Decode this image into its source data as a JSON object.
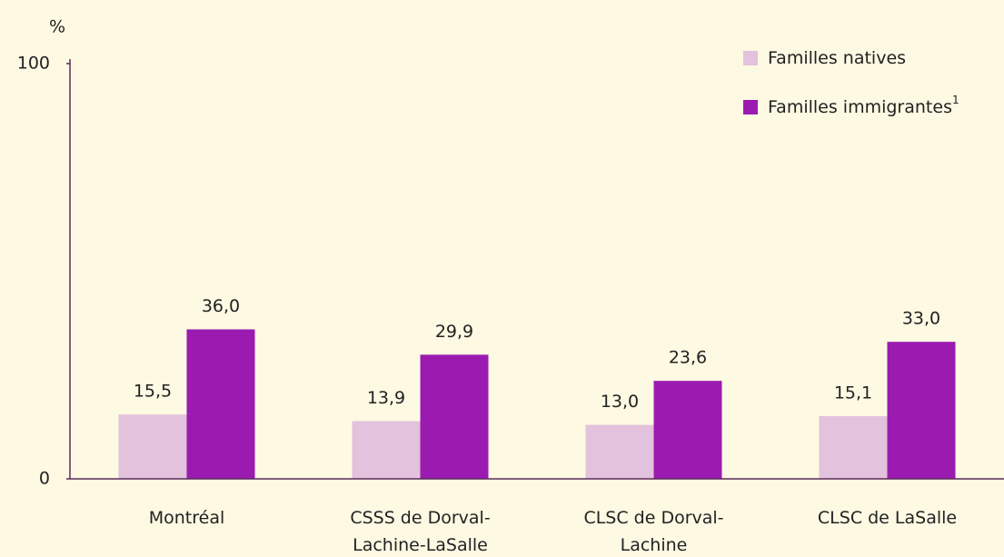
{
  "chart_data": {
    "type": "bar",
    "y_label": "%",
    "categories": [
      "Montréal",
      "CSSS de Dorval-Lachine-LaSalle",
      "CLSC de Dorval-Lachine",
      "CLSC de LaSalle"
    ],
    "series": [
      {
        "name": "Familles natives",
        "color": "#e2c2dc",
        "values": [
          15.5,
          13.9,
          13.0,
          15.1
        ],
        "value_labels": [
          "15,5",
          "13,9",
          "13,0",
          "15,1"
        ]
      },
      {
        "name": "Familles immigrantes",
        "name_superscript": "1",
        "color": "#9b1bb0",
        "values": [
          36.0,
          29.9,
          23.6,
          33.0
        ],
        "value_labels": [
          "36,0",
          "29,9",
          "23,6",
          "33,0"
        ]
      }
    ],
    "ylim": [
      0,
      100
    ],
    "yticks": [
      0,
      100
    ],
    "grid": false,
    "legend": "top-right"
  }
}
